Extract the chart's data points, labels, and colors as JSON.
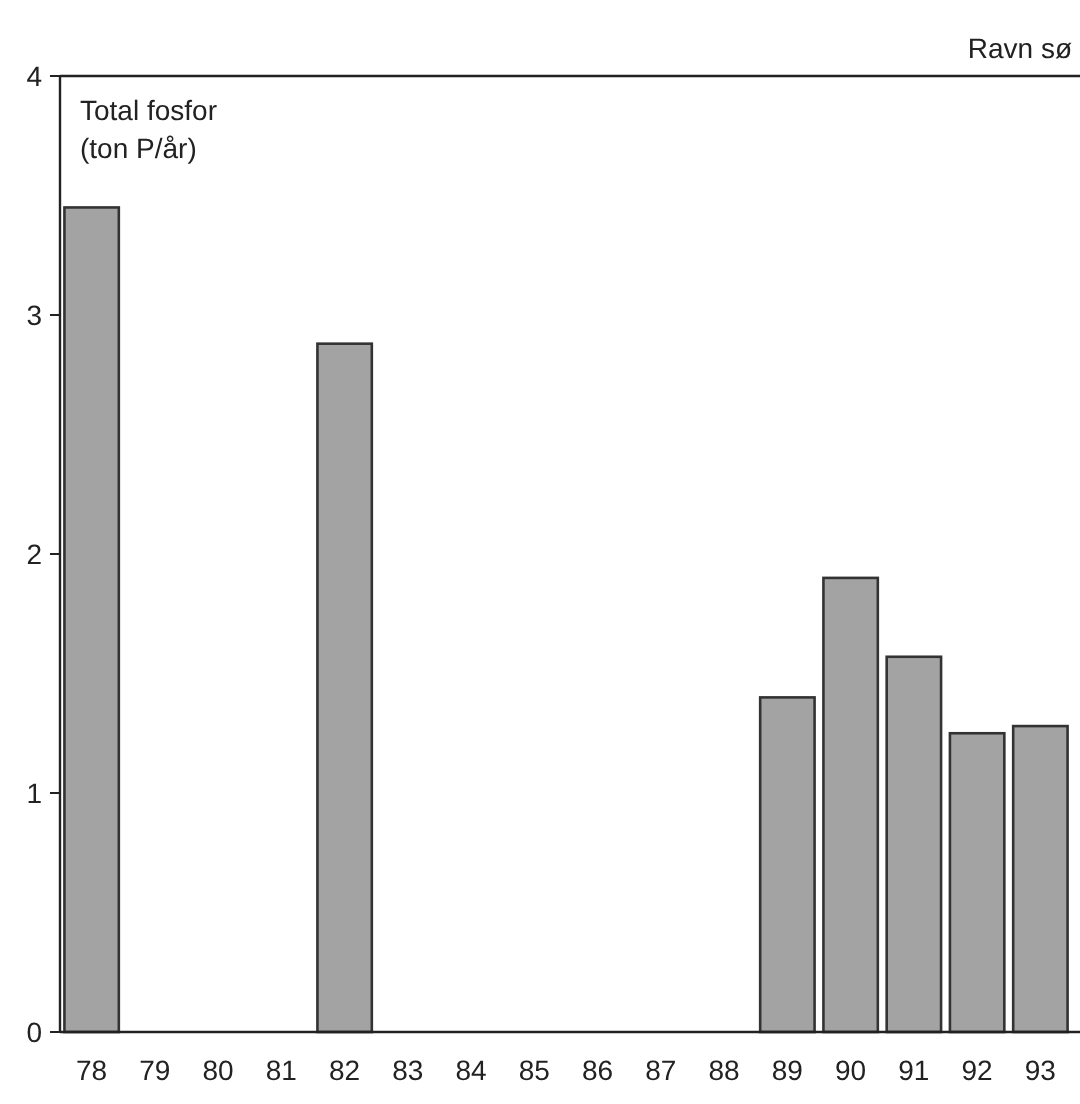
{
  "chart_data": {
    "type": "bar",
    "title": "Ravn sø",
    "ylabel": "Total fosfor\n(ton P/år)",
    "categories": [
      "78",
      "79",
      "80",
      "81",
      "82",
      "83",
      "84",
      "85",
      "86",
      "87",
      "88",
      "89",
      "90",
      "91",
      "92",
      "93"
    ],
    "values": [
      3.45,
      null,
      null,
      null,
      2.88,
      null,
      null,
      null,
      null,
      null,
      null,
      1.4,
      1.9,
      1.57,
      1.25,
      1.28
    ],
    "color": "#a3a3a3",
    "ylim": [
      0,
      4
    ],
    "yticks": [
      0,
      1,
      2,
      3,
      4
    ],
    "grid": false
  }
}
